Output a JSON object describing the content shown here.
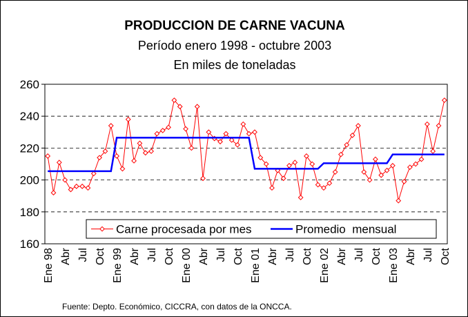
{
  "chart_data": {
    "type": "line",
    "title": "PRODUCCION DE CARNE VACUNA",
    "subtitle": [
      "Período enero 1998 - octubre 2003",
      "En miles de toneladas"
    ],
    "source": "Fuente: Depto. Económico, CICCRA, con datos de la ONCCA.",
    "categories": [
      "Ene 98",
      null,
      null,
      "Abr",
      null,
      null,
      "Jul",
      null,
      null,
      "Oct",
      null,
      null,
      "Ene 99",
      null,
      null,
      "Abr",
      null,
      null,
      "Jul",
      null,
      null,
      "Oct",
      null,
      null,
      "Ene 00",
      null,
      null,
      "Abr",
      null,
      null,
      "Jul",
      null,
      null,
      "Oct",
      null,
      null,
      "Ene 01",
      null,
      null,
      "Abr",
      null,
      null,
      "Jul",
      null,
      null,
      "Oct",
      null,
      null,
      "Ene 02",
      null,
      null,
      "Abr",
      null,
      null,
      "Jul",
      null,
      null,
      "Oct",
      null,
      null,
      "Ene 03",
      null,
      null,
      "Abr",
      null,
      null,
      "Jul",
      null,
      null,
      "Oct"
    ],
    "series": [
      {
        "name": "Carne procesada por mes",
        "color": "#ff0000",
        "marker": "diamond",
        "values": [
          215,
          192,
          211,
          200,
          194,
          196,
          196,
          195,
          204,
          214,
          218,
          234,
          215,
          207,
          238,
          212,
          223,
          217,
          218,
          229,
          231,
          233,
          250,
          246,
          232,
          220,
          246,
          201,
          230,
          226,
          224,
          229,
          225,
          222,
          235,
          229,
          230,
          214,
          210,
          195,
          206,
          201,
          209,
          211,
          189,
          215,
          210,
          197,
          195,
          198,
          205,
          216,
          222,
          228,
          234,
          205,
          200,
          213,
          203,
          206,
          209,
          187,
          199,
          208,
          210,
          213,
          235,
          218,
          234,
          250
        ]
      },
      {
        "name": "Promedio  mensual",
        "color": "#0000ff",
        "values": [
          205.5,
          205.5,
          205.5,
          205.5,
          205.5,
          205.5,
          205.5,
          205.5,
          205.5,
          205.5,
          205.5,
          205.5,
          226.5,
          226.5,
          226.5,
          226.5,
          226.5,
          226.5,
          226.5,
          226.5,
          226.5,
          226.5,
          226.5,
          226.5,
          226.5,
          226.5,
          226.5,
          226.5,
          226.5,
          226.5,
          226.5,
          226.5,
          226.5,
          226.5,
          226.5,
          226.5,
          207,
          207,
          207,
          207,
          207,
          207,
          207,
          207,
          207,
          207,
          207,
          207,
          210.5,
          210.5,
          210.5,
          210.5,
          210.5,
          210.5,
          210.5,
          210.5,
          210.5,
          210.5,
          210.5,
          210.5,
          216,
          216,
          216,
          216,
          216,
          216,
          216,
          216,
          216,
          216
        ]
      }
    ],
    "ylim": [
      160,
      260
    ],
    "yticks": [
      160,
      180,
      200,
      220,
      240,
      260
    ],
    "grid": true,
    "legend": "bottom"
  }
}
